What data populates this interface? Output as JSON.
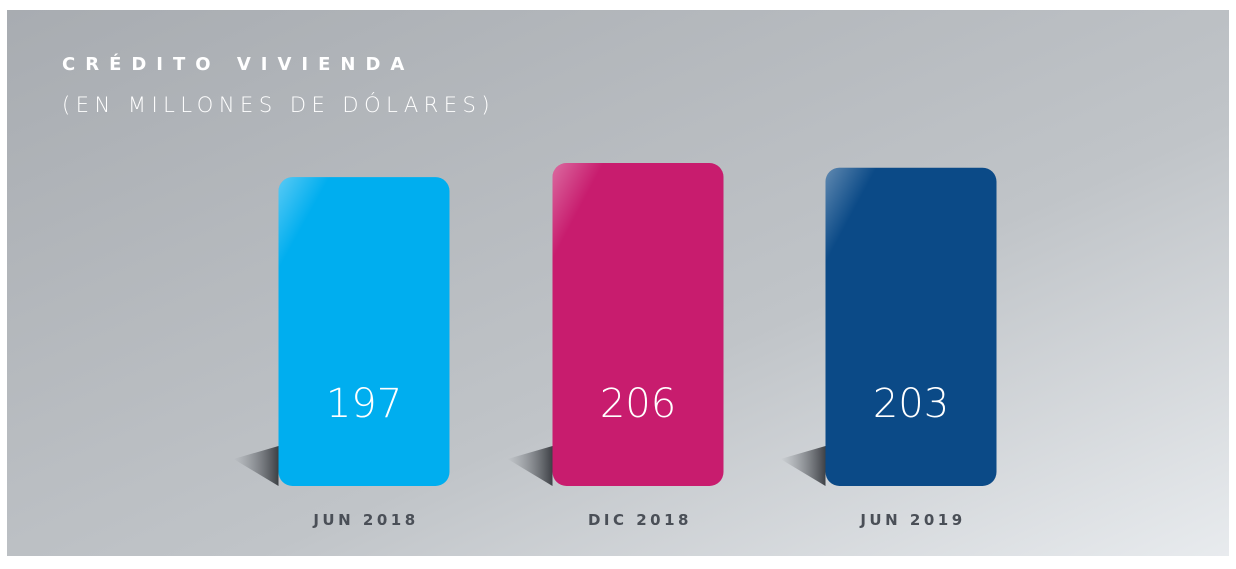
{
  "chart_data": {
    "type": "bar",
    "title": "CRÉDITO VIVIENDA",
    "subtitle": "(EN MILLONES DE DÓLARES)",
    "categories": [
      "JUN 2018",
      "DIC 2018",
      "JUN 2019"
    ],
    "values": [
      197,
      206,
      203
    ],
    "colors": [
      "#00aeef",
      "#c81c6e",
      "#0b4a87"
    ]
  }
}
